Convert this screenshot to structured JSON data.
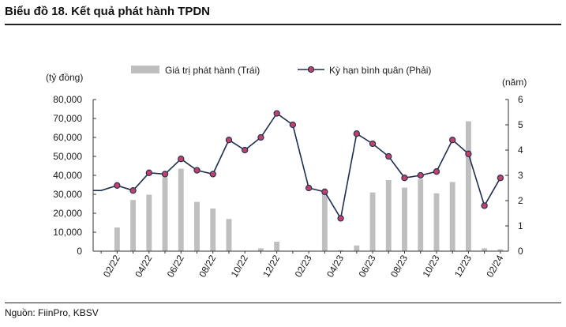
{
  "header": {
    "title": "Biểu đồ 18. Kết quả phát hành TPDN"
  },
  "footer": {
    "source": "Nguồn: FiinPro, KBSV"
  },
  "chart_data": {
    "type": "bar+line",
    "left_unit": "(tỷ đồng)",
    "right_unit": "(năm)",
    "legend": {
      "bar": "Giá trị phát hành (Trái)",
      "line": "Kỳ hạn bình quân (Phải)",
      "placement": "top"
    },
    "left_axis": {
      "min": 0,
      "max": 80000,
      "ticks": [
        "0",
        "10,000",
        "20,000",
        "30,000",
        "40,000",
        "50,000",
        "60,000",
        "70,000",
        "80,000"
      ]
    },
    "right_axis": {
      "min": 0,
      "max": 6,
      "ticks": [
        "0",
        "1",
        "2",
        "3",
        "4",
        "5",
        "6"
      ]
    },
    "x_tick_labels": [
      "02/22",
      "04/22",
      "06/22",
      "08/22",
      "10/22",
      "12/22",
      "02/23",
      "04/23",
      "06/23",
      "08/23",
      "10/23",
      "12/23",
      "02/24"
    ],
    "months": [
      "01/22",
      "02/22",
      "03/22",
      "04/22",
      "05/22",
      "06/22",
      "07/22",
      "08/22",
      "09/22",
      "10/22",
      "11/22",
      "12/22",
      "01/23",
      "02/23",
      "03/23",
      "04/23",
      "05/23",
      "06/23",
      "07/23",
      "08/23",
      "09/23",
      "10/23",
      "11/23",
      "12/23",
      "01/24",
      "02/24"
    ],
    "bar_values": [
      0,
      12500,
      27000,
      29800,
      39000,
      43500,
      26000,
      22500,
      17000,
      0,
      1500,
      5000,
      0,
      0,
      31000,
      500,
      3000,
      31000,
      37500,
      33500,
      38000,
      30500,
      36500,
      68500,
      1500,
      1000
    ],
    "line_values": [
      2.4,
      2.6,
      2.4,
      3.1,
      3.05,
      3.65,
      3.2,
      3.05,
      4.4,
      4.0,
      4.5,
      5.45,
      5.0,
      2.5,
      2.35,
      1.3,
      4.65,
      4.25,
      3.75,
      2.9,
      3.0,
      3.15,
      4.4,
      3.85,
      1.8,
      2.9
    ],
    "grid": false,
    "colors": {
      "bar": "#bfbfbf",
      "line": "#1f2d4e",
      "marker": "#c0426a"
    }
  }
}
